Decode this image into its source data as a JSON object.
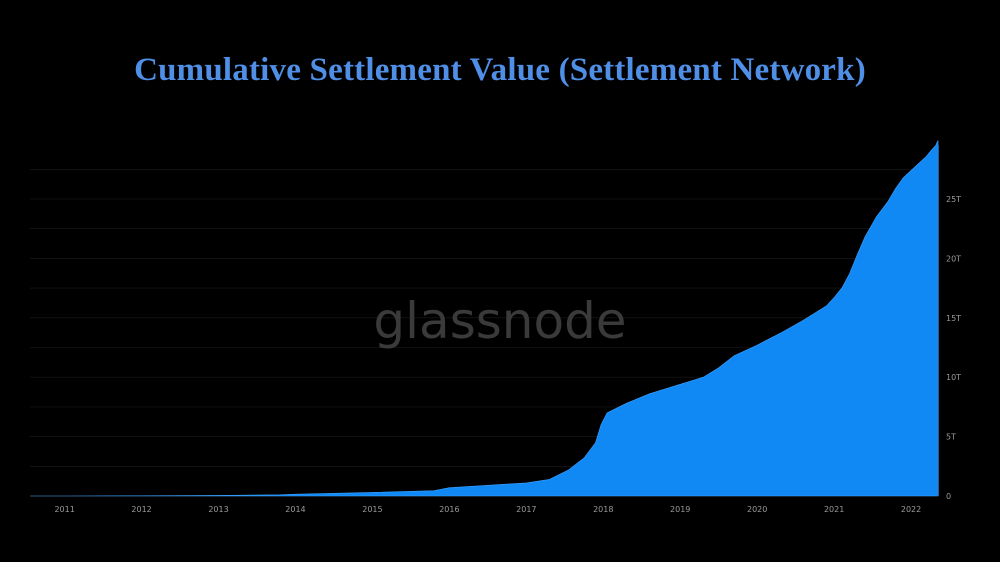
{
  "title": "Cumulative Settlement Value (Settlement Network)",
  "watermark": "glassnode",
  "colors": {
    "area": "#1189f5",
    "title": "#4f8fe6",
    "background": "#000000"
  },
  "chart_data": {
    "type": "area",
    "title": "Cumulative Settlement Value (Settlement Network)",
    "xlabel": "",
    "ylabel": "",
    "x_ticks": [
      "2011",
      "2012",
      "2013",
      "2014",
      "2015",
      "2016",
      "2017",
      "2018",
      "2019",
      "2020",
      "2021",
      "2022"
    ],
    "y_ticks": [
      "0",
      "5T",
      "10T",
      "15T",
      "20T",
      "25T"
    ],
    "ylim": [
      0,
      29
    ],
    "xlim": [
      2010.55,
      2022.35
    ],
    "y_axis_side": "right",
    "grid": "horizontal",
    "series": [
      {
        "values_unit": "trillions USD",
        "x": [
          2010.55,
          2011.0,
          2012.0,
          2013.0,
          2013.8,
          2014.0,
          2015.0,
          2015.8,
          2016.0,
          2016.5,
          2017.0,
          2017.3,
          2017.55,
          2017.75,
          2017.9,
          2017.97,
          2018.05,
          2018.3,
          2018.6,
          2019.0,
          2019.3,
          2019.5,
          2019.7,
          2020.0,
          2020.3,
          2020.6,
          2020.9,
          2021.0,
          2021.1,
          2021.2,
          2021.3,
          2021.4,
          2021.55,
          2021.7,
          2021.8,
          2021.9,
          2022.0,
          2022.1,
          2022.2,
          2022.25,
          2022.29,
          2022.32,
          2022.34,
          2022.35
        ],
        "values": [
          0.0,
          0.0,
          0.02,
          0.05,
          0.1,
          0.15,
          0.3,
          0.45,
          0.7,
          0.9,
          1.1,
          1.4,
          2.2,
          3.2,
          4.5,
          6.0,
          7.0,
          7.8,
          8.6,
          9.4,
          10.0,
          10.8,
          11.8,
          12.7,
          13.7,
          14.8,
          16.0,
          16.7,
          17.5,
          18.7,
          20.3,
          21.8,
          23.5,
          24.8,
          25.9,
          26.8,
          27.4,
          28.0,
          28.6,
          29.0,
          29.3,
          29.5,
          29.8,
          29.9
        ]
      }
    ],
    "note": "Values estimated from the area outline; y-axis scale per tick labels."
  }
}
